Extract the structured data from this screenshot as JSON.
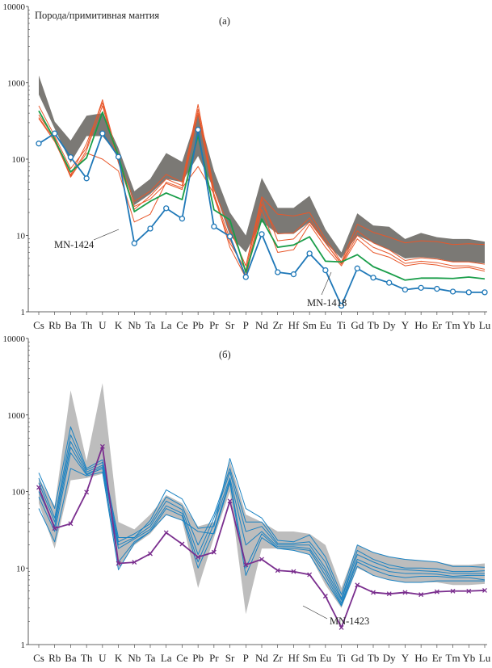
{
  "chart_data": [
    {
      "type": "line",
      "panel_label": "(а)",
      "ylabel": "Порода/примитивная мантия",
      "yscale": "log",
      "ylim": [
        1,
        10000
      ],
      "yticks": [
        "1",
        "10",
        "100",
        "1000",
        "10000"
      ],
      "categories": [
        "Cs",
        "Rb",
        "Ba",
        "Th",
        "U",
        "K",
        "Nb",
        "Ta",
        "La",
        "Ce",
        "Pb",
        "Pr",
        "Sr",
        "P",
        "Nd",
        "Zr",
        "Hf",
        "Sm",
        "Eu",
        "Ti",
        "Gd",
        "Tb",
        "Dy",
        "Y",
        "Ho",
        "Er",
        "Tm",
        "Yb",
        "Lu"
      ],
      "band": {
        "color": "#7b7975",
        "upper": [
          1250,
          310,
          175,
          370,
          400,
          140,
          38,
          55,
          120,
          92,
          400,
          70,
          20,
          10,
          57,
          23,
          23,
          33,
          12,
          6,
          19.5,
          13.5,
          13,
          9,
          10.8,
          9.5,
          9,
          9,
          8.3
        ],
        "lower": [
          700,
          250,
          90,
          200,
          200,
          110,
          25,
          35,
          55,
          50,
          110,
          40,
          10,
          6,
          15,
          10.5,
          10.5,
          15,
          8,
          5,
          10,
          8,
          6.5,
          5,
          5.2,
          5,
          4.5,
          4.5,
          4.3
        ]
      },
      "series": [
        {
          "name": "orange-1",
          "color": "#e8572a",
          "marker": "none",
          "values": [
            500,
            200,
            75,
            140,
            600,
            100,
            28,
            38,
            63,
            50,
            520,
            40,
            12,
            4,
            32,
            19,
            18,
            20,
            9,
            4.5,
            14,
            11,
            9.5,
            8,
            8.5,
            8.3,
            7.6,
            7.8,
            7.6
          ]
        },
        {
          "name": "orange-2",
          "color": "#e8572a",
          "marker": "none",
          "values": [
            380,
            190,
            60,
            130,
            500,
            90,
            22,
            33,
            55,
            45,
            450,
            35,
            9,
            3,
            26,
            10.5,
            10.8,
            17,
            8,
            4.3,
            11.5,
            8,
            6.5,
            4.7,
            5.1,
            4.9,
            4.5,
            4.5,
            4.2
          ]
        },
        {
          "name": "orange-3",
          "color": "#e8572a",
          "marker": "none",
          "values": [
            350,
            180,
            58,
            120,
            100,
            70,
            15,
            19,
            50,
            42,
            80,
            35,
            7,
            2.8,
            22,
            6,
            6.5,
            14,
            7,
            4,
            9,
            6,
            5.2,
            4,
            4.3,
            4.1,
            3.7,
            3.8,
            3.4
          ]
        },
        {
          "name": "orange-4",
          "color": "#e8572a",
          "marker": "none",
          "values": [
            340,
            170,
            62,
            160,
            550,
            95,
            24,
            30,
            48,
            40,
            400,
            32,
            8,
            3.5,
            30,
            8.5,
            9,
            15,
            8,
            4.2,
            10,
            7,
            5.8,
            4.3,
            4.6,
            4.4,
            4,
            4,
            3.6
          ]
        },
        {
          "name": "MN-1418",
          "color": "#1a9e4a",
          "marker": "none",
          "values": [
            430,
            180,
            68,
            104,
            412,
            110,
            20.5,
            28,
            36,
            29.5,
            207,
            21.7,
            16,
            3.3,
            16.4,
            7,
            7.5,
            9.6,
            4.6,
            4.5,
            5.6,
            3.9,
            3.2,
            2.6,
            2.76,
            2.76,
            2.73,
            2.85,
            2.7
          ]
        },
        {
          "name": "MN-1424",
          "color": "#1f78b8",
          "marker": "circle",
          "values": [
            160,
            217,
            106,
            56,
            217,
            107,
            7.9,
            12.3,
            22.7,
            16.6,
            243,
            13.1,
            9.7,
            2.85,
            10.4,
            3.3,
            3.1,
            5.8,
            3.5,
            1.2,
            3.7,
            2.8,
            2.4,
            1.95,
            2.06,
            2.0,
            1.84,
            1.8,
            1.8
          ]
        }
      ],
      "annotations": [
        "MN-1424",
        "MN-1418"
      ]
    },
    {
      "type": "line",
      "panel_label": "(б)",
      "yscale": "log",
      "ylim": [
        1,
        10000
      ],
      "yticks": [
        "1",
        "10",
        "100",
        "1000",
        "10000"
      ],
      "categories": [
        "Cs",
        "Rb",
        "Ba",
        "Th",
        "U",
        "K",
        "Nb",
        "Ta",
        "La",
        "Ce",
        "Pb",
        "Pr",
        "Sr",
        "P",
        "Nd",
        "Zr",
        "Hf",
        "Sm",
        "Eu",
        "Ti",
        "Gd",
        "Tb",
        "Dy",
        "Y",
        "Ho",
        "Er",
        "Tm",
        "Yb",
        "Lu"
      ],
      "band": {
        "color": "#bdbdbd",
        "upper": [
          150,
          65,
          2100,
          250,
          2600,
          40,
          32,
          50,
          90,
          70,
          35,
          40,
          250,
          50,
          40,
          30,
          30,
          28,
          20,
          5.5,
          20,
          16,
          14,
          13,
          12.5,
          12,
          11,
          11,
          11.5
        ],
        "lower": [
          70,
          18,
          140,
          150,
          170,
          10,
          20,
          28,
          50,
          42,
          5.5,
          25,
          100,
          2.5,
          18,
          18,
          17,
          15,
          6,
          3,
          10,
          8,
          7,
          6.5,
          6.5,
          6.5,
          6,
          6,
          6.2
        ]
      },
      "series": [
        {
          "name": "blue-1",
          "color": "#1a82c2",
          "marker": "none",
          "values": [
            175,
            60,
            700,
            200,
            260,
            25,
            25,
            42,
            105,
            80,
            33,
            35,
            270,
            60,
            45,
            23,
            22,
            27,
            14,
            4.5,
            20,
            16,
            14,
            13,
            12.5,
            12,
            10.5,
            10.5,
            10.2
          ]
        },
        {
          "name": "blue-2",
          "color": "#1a82c2",
          "marker": "none",
          "values": [
            150,
            45,
            550,
            190,
            240,
            22,
            28,
            38,
            85,
            65,
            20,
            50,
            200,
            40,
            40,
            21,
            21,
            22,
            12,
            4,
            17,
            13,
            11,
            10,
            10,
            9.8,
            9,
            9,
            9.2
          ]
        },
        {
          "name": "blue-3",
          "color": "#1a82c2",
          "marker": "none",
          "values": [
            130,
            40,
            450,
            180,
            220,
            20,
            25,
            35,
            75,
            58,
            15,
            45,
            180,
            30,
            35,
            20,
            20,
            20,
            10,
            3.8,
            15,
            12,
            10,
            9.5,
            9.2,
            9,
            8.5,
            8.5,
            8.5
          ]
        },
        {
          "name": "blue-4",
          "color": "#1a82c2",
          "marker": "none",
          "values": [
            100,
            35,
            380,
            170,
            210,
            18,
            24,
            32,
            65,
            52,
            12,
            38,
            150,
            20,
            30,
            19,
            19,
            18,
            9,
            3.5,
            13,
            10.5,
            9,
            8.5,
            8.5,
            8.3,
            7.8,
            8,
            8
          ]
        },
        {
          "name": "blue-5",
          "color": "#1a82c2",
          "marker": "none",
          "values": [
            85,
            30,
            320,
            165,
            200,
            12,
            22,
            30,
            60,
            48,
            10,
            30,
            140,
            10,
            28,
            18,
            18,
            17,
            8,
            3.3,
            12,
            9.5,
            8,
            7.5,
            7.8,
            7.8,
            7.5,
            7.5,
            7
          ]
        },
        {
          "name": "blue-6",
          "color": "#1a82c2",
          "marker": "none",
          "values": [
            60,
            22,
            200,
            160,
            180,
            9.5,
            21,
            30,
            50,
            42,
            30,
            28,
            130,
            8,
            25,
            18,
            17,
            15,
            7,
            3.2,
            10.5,
            8,
            7,
            6.5,
            6.5,
            6.8,
            6.8,
            6.8,
            6.8
          ]
        },
        {
          "name": "MN-1423",
          "color": "#7a2e8e",
          "marker": "cross",
          "values": [
            113,
            33,
            38,
            98,
            387,
            11.5,
            11.9,
            15.4,
            29,
            20.6,
            13.9,
            16.1,
            75,
            11,
            13,
            9.3,
            9,
            8.2,
            4.3,
            1.67,
            6,
            4.8,
            4.6,
            4.8,
            4.5,
            4.9,
            5,
            5,
            5.1
          ]
        }
      ],
      "annotations": [
        "MN-1423"
      ]
    }
  ]
}
